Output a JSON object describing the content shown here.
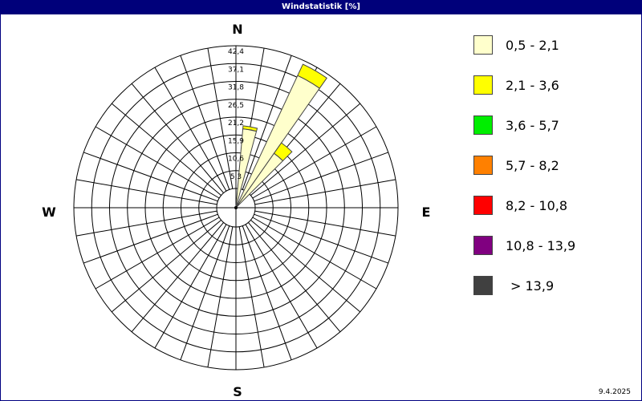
{
  "window": {
    "title": "Windstatistik [%]"
  },
  "footer": {
    "date": "9.4.2025"
  },
  "directions": {
    "north": "N",
    "east": "E",
    "south": "S",
    "west": "W"
  },
  "legend": [
    {
      "label": "0,5 - 2,1",
      "color": "#ffffcc"
    },
    {
      "label": "2,1 - 3,6",
      "color": "#ffff00"
    },
    {
      "label": "3,6 - 5,7",
      "color": "#00ee00"
    },
    {
      "label": "5,7 - 8,2",
      "color": "#ff8000"
    },
    {
      "label": "8,2 - 10,8",
      "color": "#ff0000"
    },
    {
      "label": "10,8 - 13,9",
      "color": "#800080"
    },
    {
      "label": "> 13,9",
      "color": "#404040"
    }
  ],
  "chart_data": {
    "type": "windrose",
    "title": "Windstatistik [%]",
    "ring_labels": [
      "5,3",
      "10,6",
      "15,9",
      "21,2",
      "26,5",
      "31,8",
      "37,1",
      "42,4"
    ],
    "rmax": 42.4,
    "sector_count": 36,
    "sectors": [
      {
        "direction_deg": 10,
        "segments": [
          {
            "bin": "0,5 - 2,1",
            "value": 17.8
          },
          {
            "bin": "2,1 - 3,6",
            "value": 0.9
          }
        ]
      },
      {
        "direction_deg": 30,
        "segments": [
          {
            "bin": "0,5 - 2,1",
            "value": 37.6
          },
          {
            "bin": "2,1 - 3,6",
            "value": 3.7
          }
        ]
      },
      {
        "direction_deg": 40,
        "segments": [
          {
            "bin": "0,5 - 2,1",
            "value": 14.0
          },
          {
            "bin": "2,1 - 3,6",
            "value": 3.8
          }
        ]
      }
    ]
  }
}
